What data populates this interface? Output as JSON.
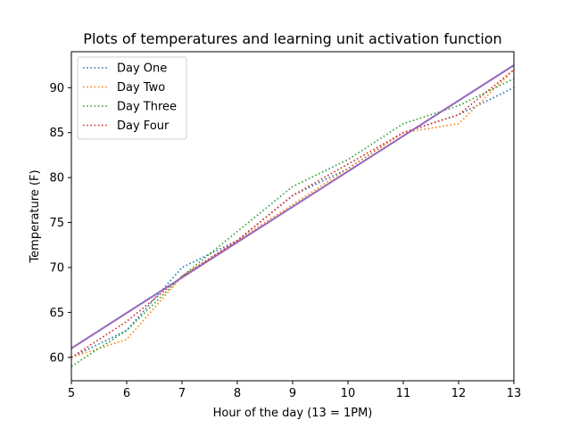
{
  "chart_data": {
    "type": "line",
    "title": "Plots of temperatures and learning unit activation function",
    "xlabel": "Hour of the day (13 = 1PM)",
    "ylabel": "Temperature (F)",
    "xlim": [
      5,
      13
    ],
    "ylim": [
      57.4,
      94.0
    ],
    "xticks": [
      5,
      6,
      7,
      8,
      9,
      10,
      11,
      12,
      13
    ],
    "yticks": [
      60,
      65,
      70,
      75,
      80,
      85,
      90
    ],
    "legend_position": "upper-left",
    "grid": false,
    "series": [
      {
        "name": "Day One",
        "color": "#1f77b4",
        "style": "dotted",
        "x": [
          5,
          6,
          7,
          8,
          9,
          10,
          11,
          12,
          13
        ],
        "y": [
          60,
          63,
          70,
          73,
          78,
          81,
          85,
          87,
          90
        ]
      },
      {
        "name": "Day Two",
        "color": "#ff7f0e",
        "style": "dotted",
        "x": [
          5,
          6,
          7,
          8,
          9,
          10,
          11,
          12,
          13
        ],
        "y": [
          60,
          62,
          69,
          73,
          77,
          81,
          85,
          86,
          92
        ]
      },
      {
        "name": "Day Three",
        "color": "#2ca02c",
        "style": "dotted",
        "x": [
          5,
          6,
          7,
          8,
          9,
          10,
          11,
          12,
          13
        ],
        "y": [
          59,
          63,
          69,
          74,
          79,
          82,
          86,
          88,
          91
        ]
      },
      {
        "name": "Day Four",
        "color": "#d62728",
        "style": "dotted",
        "x": [
          5,
          6,
          7,
          8,
          9,
          10,
          11,
          12,
          13
        ],
        "y": [
          60,
          64,
          69,
          73,
          78,
          81.5,
          85,
          87,
          92
        ]
      },
      {
        "color": "#9467bd",
        "style": "solid",
        "x": [
          5,
          13
        ],
        "y": [
          61,
          92.5
        ]
      }
    ]
  }
}
